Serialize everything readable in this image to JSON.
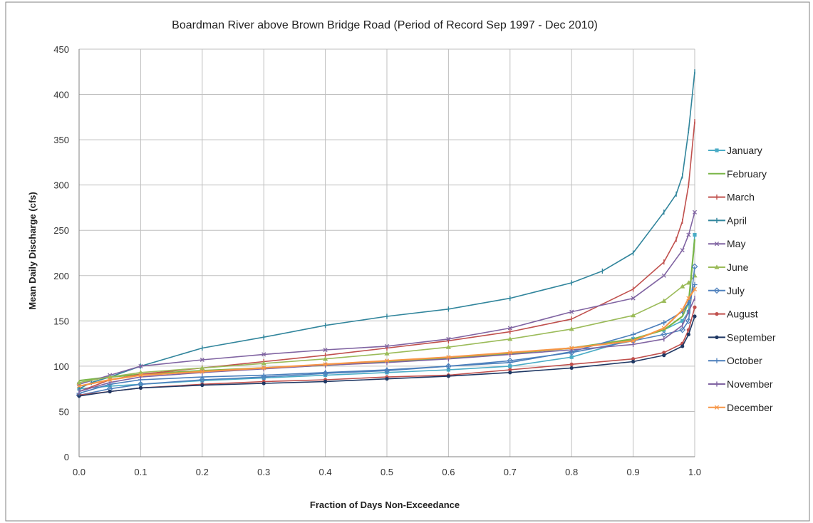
{
  "chart_data": {
    "type": "line",
    "title": "Boardman River above Brown Bridge Road (Period of Record Sep 1997 - Dec 2010)",
    "xlabel": "Fraction of Days Non-Exceedance",
    "ylabel": "Mean Daily Discharge (cfs)",
    "xlim": [
      0,
      1
    ],
    "ylim": [
      0,
      450
    ],
    "x_ticks": [
      "0.0",
      "0.1",
      "0.2",
      "0.3",
      "0.4",
      "0.5",
      "0.6",
      "0.7",
      "0.8",
      "0.9",
      "1.0"
    ],
    "y_ticks": [
      "0",
      "50",
      "100",
      "150",
      "200",
      "250",
      "300",
      "350",
      "400",
      "450"
    ],
    "grid": true,
    "legend_position": "right",
    "series": [
      {
        "name": "January",
        "color": "#4bacc6",
        "marker": "square",
        "x": [
          0,
          0.05,
          0.1,
          0.2,
          0.3,
          0.4,
          0.5,
          0.6,
          0.7,
          0.8,
          0.9,
          0.95,
          0.98,
          0.99,
          1.0
        ],
        "y": [
          75,
          78,
          80,
          84,
          87,
          90,
          93,
          96,
          100,
          110,
          130,
          140,
          150,
          160,
          245
        ]
      },
      {
        "name": "February",
        "color": "#7ab648",
        "marker": "none",
        "x": [
          0,
          0.05,
          0.1,
          0.2,
          0.3,
          0.4,
          0.5,
          0.6,
          0.7,
          0.8,
          0.9,
          0.95,
          0.98,
          0.99,
          1.0
        ],
        "y": [
          84,
          88,
          91,
          95,
          98,
          101,
          105,
          109,
          114,
          120,
          130,
          140,
          155,
          170,
          240
        ]
      },
      {
        "name": "March",
        "color": "#c0504d",
        "marker": "bar",
        "x": [
          0,
          0.05,
          0.1,
          0.2,
          0.3,
          0.4,
          0.5,
          0.6,
          0.7,
          0.8,
          0.9,
          0.95,
          0.97,
          0.98,
          0.99,
          1.0
        ],
        "y": [
          72,
          85,
          91,
          98,
          105,
          112,
          120,
          128,
          138,
          152,
          185,
          215,
          240,
          260,
          300,
          370
        ]
      },
      {
        "name": "April",
        "color": "#31859c",
        "marker": "bar",
        "x": [
          0,
          0.02,
          0.05,
          0.1,
          0.2,
          0.3,
          0.4,
          0.5,
          0.6,
          0.7,
          0.8,
          0.85,
          0.9,
          0.95,
          0.97,
          0.98,
          0.99,
          1.0
        ],
        "y": [
          75,
          82,
          88,
          100,
          120,
          132,
          145,
          155,
          163,
          175,
          192,
          205,
          225,
          270,
          290,
          310,
          360,
          425
        ]
      },
      {
        "name": "May",
        "color": "#8064a2",
        "marker": "cross",
        "x": [
          0,
          0.05,
          0.1,
          0.2,
          0.3,
          0.4,
          0.5,
          0.6,
          0.7,
          0.8,
          0.9,
          0.95,
          0.98,
          0.99,
          1.0
        ],
        "y": [
          80,
          90,
          100,
          107,
          113,
          118,
          122,
          130,
          142,
          160,
          175,
          200,
          228,
          245,
          270
        ]
      },
      {
        "name": "June",
        "color": "#9bbb59",
        "marker": "triangle",
        "x": [
          0,
          0.05,
          0.1,
          0.2,
          0.3,
          0.4,
          0.5,
          0.6,
          0.7,
          0.8,
          0.9,
          0.95,
          0.98,
          0.99,
          1.0
        ],
        "y": [
          82,
          88,
          93,
          98,
          103,
          108,
          114,
          121,
          130,
          141,
          156,
          172,
          188,
          192,
          200
        ]
      },
      {
        "name": "July",
        "color": "#4f81bd",
        "marker": "diamond",
        "x": [
          0,
          0.05,
          0.1,
          0.2,
          0.3,
          0.4,
          0.5,
          0.6,
          0.7,
          0.8,
          0.9,
          0.95,
          0.98,
          0.99,
          1.0
        ],
        "y": [
          68,
          75,
          80,
          85,
          88,
          92,
          95,
          100,
          106,
          115,
          128,
          135,
          140,
          150,
          210
        ]
      },
      {
        "name": "August",
        "color": "#c0504d",
        "marker": "circle",
        "x": [
          0,
          0.05,
          0.1,
          0.2,
          0.3,
          0.4,
          0.5,
          0.6,
          0.7,
          0.8,
          0.9,
          0.95,
          0.98,
          0.99,
          1.0
        ],
        "y": [
          68,
          72,
          76,
          80,
          83,
          85,
          88,
          90,
          96,
          102,
          108,
          115,
          125,
          140,
          165
        ]
      },
      {
        "name": "September",
        "color": "#1f3864",
        "marker": "circle",
        "x": [
          0,
          0.05,
          0.1,
          0.2,
          0.3,
          0.4,
          0.5,
          0.6,
          0.7,
          0.8,
          0.9,
          0.95,
          0.98,
          0.99,
          1.0
        ],
        "y": [
          67,
          72,
          76,
          79,
          81,
          83,
          86,
          89,
          93,
          98,
          105,
          112,
          122,
          135,
          155
        ]
      },
      {
        "name": "October",
        "color": "#4a7ebb",
        "marker": "plus",
        "x": [
          0,
          0.05,
          0.1,
          0.2,
          0.3,
          0.4,
          0.5,
          0.6,
          0.7,
          0.8,
          0.9,
          0.95,
          0.98,
          0.99,
          1.0
        ],
        "y": [
          70,
          80,
          85,
          88,
          90,
          93,
          96,
          100,
          104,
          116,
          135,
          148,
          160,
          170,
          190
        ]
      },
      {
        "name": "November",
        "color": "#8064a2",
        "marker": "bar",
        "x": [
          0,
          0.05,
          0.1,
          0.2,
          0.3,
          0.4,
          0.5,
          0.6,
          0.7,
          0.8,
          0.9,
          0.95,
          0.98,
          0.99,
          1.0
        ],
        "y": [
          72,
          82,
          88,
          93,
          97,
          101,
          104,
          108,
          113,
          118,
          124,
          130,
          145,
          160,
          175
        ]
      },
      {
        "name": "December",
        "color": "#f79646",
        "marker": "cross",
        "x": [
          0,
          0.05,
          0.1,
          0.2,
          0.3,
          0.4,
          0.5,
          0.6,
          0.7,
          0.8,
          0.9,
          0.95,
          0.98,
          0.99,
          1.0
        ],
        "y": [
          78,
          85,
          90,
          94,
          98,
          102,
          106,
          110,
          115,
          120,
          128,
          142,
          162,
          175,
          185
        ]
      }
    ]
  }
}
